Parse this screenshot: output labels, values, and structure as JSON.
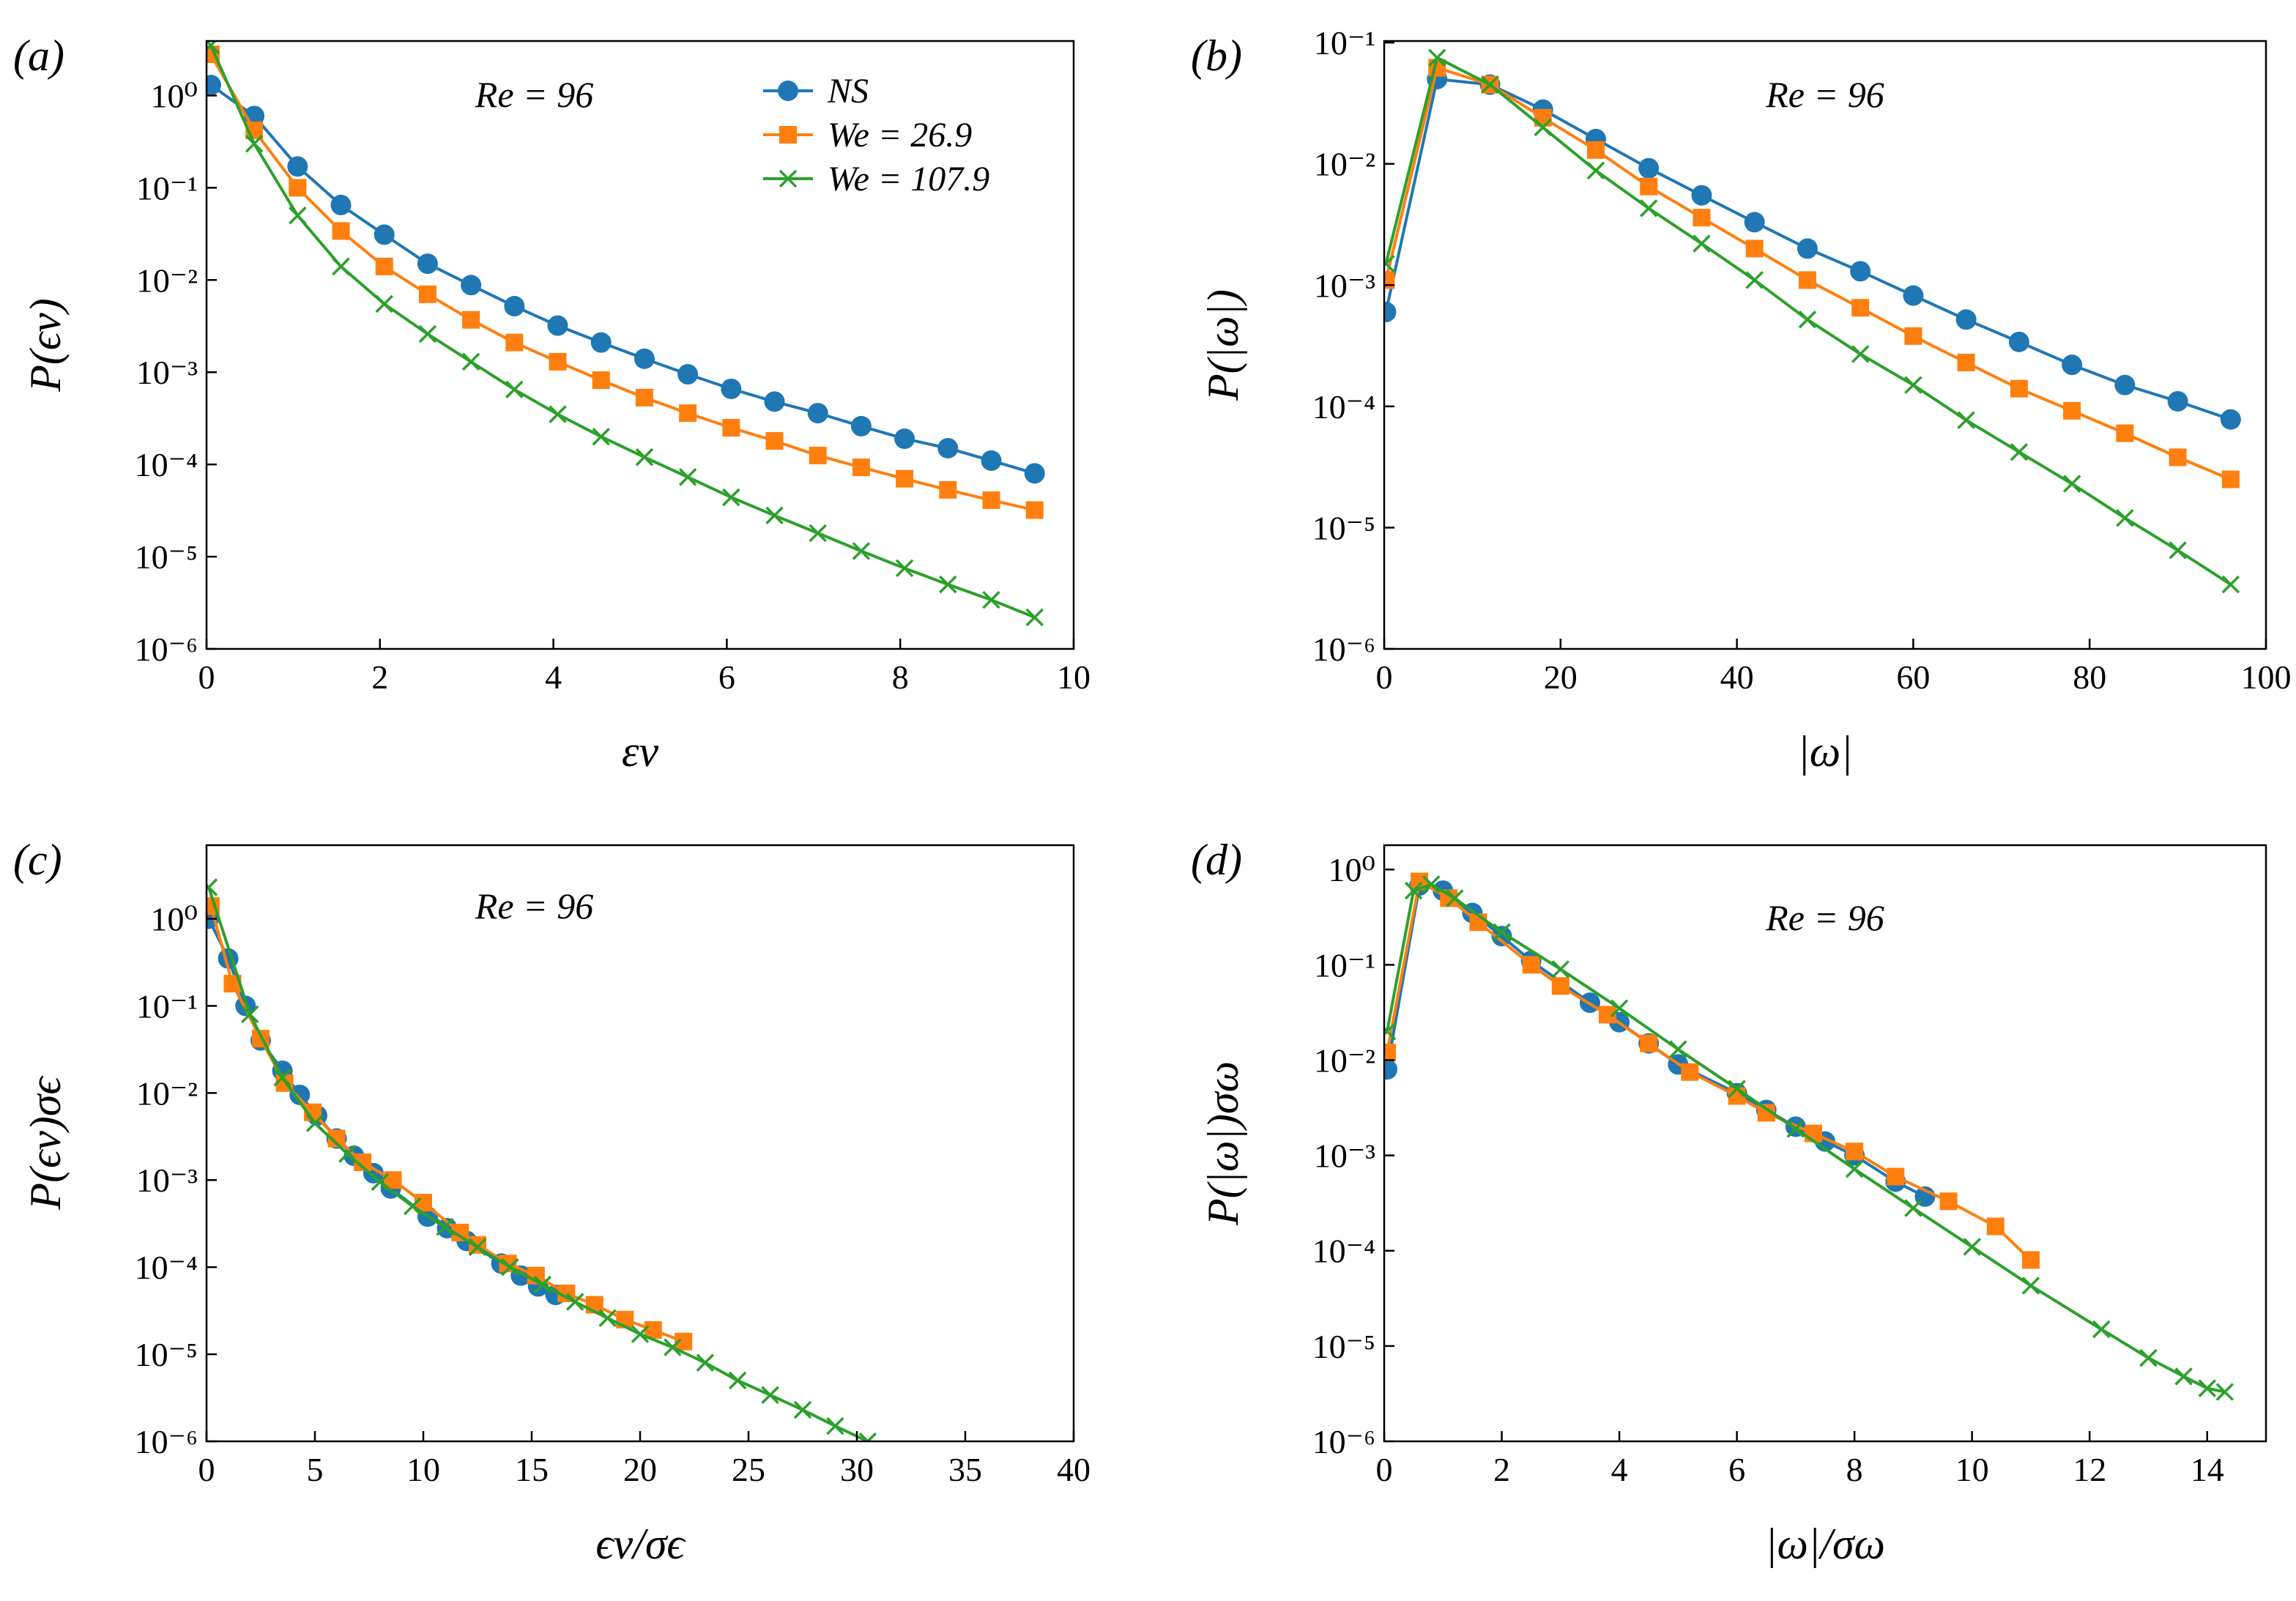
{
  "chart_data": [
    {
      "type": "line",
      "panel_label": "(a)",
      "annotation": "Re = 96",
      "xlabel": "εν",
      "ylabel": "P(ϵν)",
      "yscale": "log",
      "legend": "upper right",
      "xlim": [
        0,
        10
      ],
      "xticks": [
        0,
        2,
        4,
        6,
        8,
        10
      ],
      "ylim": [
        1e-06,
        3.9
      ],
      "yticks": [
        {
          "value": 1,
          "label": "10⁰"
        },
        {
          "value": 0.1,
          "label": "10⁻¹"
        },
        {
          "value": 0.01,
          "label": "10⁻²"
        },
        {
          "value": 0.001,
          "label": "10⁻³"
        },
        {
          "value": 0.0001,
          "label": "10⁻⁴"
        },
        {
          "value": 1e-05,
          "label": "10⁻⁵"
        },
        {
          "value": 1e-06,
          "label": "10⁻⁶"
        }
      ],
      "series": [
        {
          "name": "NS",
          "color": "#1f77b4",
          "marker": "circle",
          "x": [
            0.05,
            0.55,
            1.05,
            1.55,
            2.05,
            2.55,
            3.05,
            3.55,
            4.05,
            4.55,
            5.05,
            5.55,
            6.05,
            6.55,
            7.05,
            7.55,
            8.05,
            8.55,
            9.05,
            9.55
          ],
          "values": [
            1.3,
            0.6,
            0.17,
            0.065,
            0.031,
            0.015,
            0.0088,
            0.0052,
            0.0032,
            0.0021,
            0.0014,
            0.00095,
            0.00066,
            0.00048,
            0.00036,
            0.00026,
            0.00019,
            0.00015,
            0.00011,
            8e-05
          ]
        },
        {
          "name": "We = 26.9",
          "color": "#ff7f0e",
          "marker": "square",
          "x": [
            0.05,
            0.55,
            1.05,
            1.55,
            2.05,
            2.55,
            3.05,
            3.55,
            4.05,
            4.55,
            5.05,
            5.55,
            6.05,
            6.55,
            7.05,
            7.55,
            8.05,
            8.55,
            9.05,
            9.55
          ],
          "values": [
            2.8,
            0.42,
            0.1,
            0.034,
            0.014,
            0.007,
            0.0037,
            0.0021,
            0.0013,
            0.00082,
            0.00053,
            0.00036,
            0.00025,
            0.00018,
            0.000125,
            9.3e-05,
            7e-05,
            5.3e-05,
            4.1e-05,
            3.2e-05
          ]
        },
        {
          "name": "We = 107.9",
          "color": "#2ca02c",
          "marker": "x",
          "x": [
            0.05,
            0.55,
            1.05,
            1.55,
            2.05,
            2.55,
            3.05,
            3.55,
            4.05,
            4.55,
            5.05,
            5.55,
            6.05,
            6.55,
            7.05,
            7.55,
            8.05,
            8.55,
            9.05,
            9.55
          ],
          "values": [
            3.5,
            0.3,
            0.05,
            0.014,
            0.0055,
            0.0026,
            0.0013,
            0.00065,
            0.00035,
            0.0002,
            0.00012,
            7.3e-05,
            4.4e-05,
            2.8e-05,
            1.8e-05,
            1.15e-05,
            7.5e-06,
            5e-06,
            3.4e-06,
            2.2e-06
          ]
        }
      ]
    },
    {
      "type": "line",
      "panel_label": "(b)",
      "annotation": "Re = 96",
      "xlabel": "|ω|",
      "ylabel": "P(|ω|)",
      "yscale": "log",
      "xlim": [
        0,
        100
      ],
      "xticks": [
        0,
        20,
        40,
        60,
        80,
        100
      ],
      "ylim": [
        1e-06,
        0.103
      ],
      "yticks": [
        {
          "value": 0.1,
          "label": "10⁻¹"
        },
        {
          "value": 0.01,
          "label": "10⁻²"
        },
        {
          "value": 0.001,
          "label": "10⁻³"
        },
        {
          "value": 0.0001,
          "label": "10⁻⁴"
        },
        {
          "value": 1e-05,
          "label": "10⁻⁵"
        },
        {
          "value": 1e-06,
          "label": "10⁻⁶"
        }
      ],
      "series": [
        {
          "color": "#1f77b4",
          "marker": "circle",
          "x": [
            0.2,
            6,
            12,
            18,
            24,
            30,
            36,
            42,
            48,
            54,
            60,
            66,
            72,
            78,
            84,
            90,
            96
          ],
          "values": [
            0.0006,
            0.05,
            0.045,
            0.028,
            0.016,
            0.0092,
            0.0055,
            0.0033,
            0.002,
            0.0013,
            0.00082,
            0.00052,
            0.00034,
            0.00022,
            0.00015,
            0.00011,
            7.8e-05
          ]
        },
        {
          "color": "#ff7f0e",
          "marker": "square",
          "x": [
            0.2,
            6,
            12,
            18,
            24,
            30,
            36,
            42,
            48,
            54,
            60,
            66,
            72,
            78,
            84,
            90,
            96
          ],
          "values": [
            0.0011,
            0.062,
            0.045,
            0.024,
            0.013,
            0.0065,
            0.0036,
            0.002,
            0.0011,
            0.00065,
            0.00038,
            0.00023,
            0.00014,
            9.2e-05,
            6e-05,
            3.8e-05,
            2.5e-05
          ]
        },
        {
          "color": "#2ca02c",
          "marker": "x",
          "x": [
            0.2,
            6,
            12,
            18,
            24,
            30,
            36,
            42,
            48,
            54,
            60,
            66,
            72,
            78,
            84,
            90,
            96
          ],
          "values": [
            0.0015,
            0.075,
            0.045,
            0.02,
            0.0088,
            0.0043,
            0.0022,
            0.0011,
            0.00052,
            0.00027,
            0.00015,
            7.7e-05,
            4.2e-05,
            2.3e-05,
            1.2e-05,
            6.5e-06,
            3.4e-06
          ]
        }
      ]
    },
    {
      "type": "line",
      "panel_label": "(c)",
      "annotation": "Re = 96",
      "xlabel": "ϵν/σϵ",
      "ylabel": "P(ϵν)σϵ",
      "yscale": "log",
      "xlim": [
        0,
        40
      ],
      "xticks": [
        0,
        5,
        10,
        15,
        20,
        25,
        30,
        35,
        40
      ],
      "ylim": [
        1e-06,
        7
      ],
      "yticks": [
        {
          "value": 1,
          "label": "10⁰"
        },
        {
          "value": 0.1,
          "label": "10⁻¹"
        },
        {
          "value": 0.01,
          "label": "10⁻²"
        },
        {
          "value": 0.001,
          "label": "10⁻³"
        },
        {
          "value": 0.0001,
          "label": "10⁻⁴"
        },
        {
          "value": 1e-05,
          "label": "10⁻⁵"
        },
        {
          "value": 1e-06,
          "label": "10⁻⁶"
        }
      ],
      "series": [
        {
          "color": "#1f77b4",
          "marker": "circle",
          "x": [
            0.1,
            1,
            1.8,
            2.5,
            3.5,
            4.3,
            5.1,
            6,
            6.8,
            7.7,
            8.5,
            10.2,
            11.1,
            12,
            13.6,
            14.5,
            15.3,
            16.1
          ],
          "values": [
            1,
            0.35,
            0.1,
            0.04,
            0.018,
            0.0095,
            0.0055,
            0.003,
            0.0019,
            0.0012,
            0.0008,
            0.00038,
            0.00028,
            0.0002,
            0.00011,
            8e-05,
            6e-05,
            4.8e-05
          ]
        },
        {
          "color": "#ff7f0e",
          "marker": "square",
          "x": [
            0.2,
            1.2,
            2.5,
            3.6,
            4.9,
            6,
            7.2,
            8.6,
            10,
            11.7,
            12.5,
            13.9,
            15.2,
            16.6,
            17.9,
            19.3,
            20.6,
            22
          ],
          "values": [
            1.4,
            0.18,
            0.042,
            0.013,
            0.006,
            0.003,
            0.0016,
            0.001,
            0.00055,
            0.00025,
            0.00018,
            0.00011,
            8e-05,
            5e-05,
            3.7e-05,
            2.5e-05,
            1.9e-05,
            1.4e-05
          ]
        },
        {
          "color": "#2ca02c",
          "marker": "x",
          "x": [
            0.1,
            2,
            3.5,
            5,
            6.5,
            8,
            9.5,
            11,
            12.5,
            14,
            15.5,
            17,
            18.5,
            20,
            21.5,
            23,
            24.5,
            26,
            27.5,
            29,
            30.5
          ],
          "values": [
            2.3,
            0.08,
            0.015,
            0.0045,
            0.002,
            0.00095,
            0.0005,
            0.00029,
            0.00017,
            0.0001,
            6.3e-05,
            4e-05,
            2.6e-05,
            1.7e-05,
            1.2e-05,
            8e-06,
            5e-06,
            3.4e-06,
            2.3e-06,
            1.5e-06,
            1e-06
          ]
        }
      ]
    },
    {
      "type": "line",
      "panel_label": "(d)",
      "annotation": "Re = 96",
      "xlabel": "|ω|/σω",
      "ylabel": "P(|ω|)σω",
      "yscale": "log",
      "xlim": [
        0,
        15
      ],
      "xticks": [
        0,
        2,
        4,
        6,
        8,
        10,
        12,
        14
      ],
      "ylim": [
        1e-06,
        1.8
      ],
      "yticks": [
        {
          "value": 1,
          "label": "10⁰"
        },
        {
          "value": 0.1,
          "label": "10⁻¹"
        },
        {
          "value": 0.01,
          "label": "10⁻²"
        },
        {
          "value": 0.001,
          "label": "10⁻³"
        },
        {
          "value": 0.0001,
          "label": "10⁻⁴"
        },
        {
          "value": 1e-05,
          "label": "10⁻⁵"
        },
        {
          "value": 1e-06,
          "label": "10⁻⁶"
        }
      ],
      "series": [
        {
          "color": "#1f77b4",
          "marker": "circle",
          "x": [
            0.05,
            0.6,
            1,
            1.5,
            2,
            2.5,
            3.5,
            4,
            4.5,
            5,
            6,
            6.5,
            7,
            7.5,
            8,
            8.7,
            9.2
          ],
          "values": [
            0.008,
            0.68,
            0.6,
            0.35,
            0.2,
            0.11,
            0.04,
            0.025,
            0.015,
            0.009,
            0.0045,
            0.003,
            0.002,
            0.0014,
            0.001,
            0.00053,
            0.00037
          ]
        },
        {
          "color": "#ff7f0e",
          "marker": "square",
          "x": [
            0.05,
            0.6,
            1.1,
            1.6,
            2.5,
            3,
            3.8,
            4.5,
            5.2,
            6,
            6.5,
            7.3,
            8,
            8.7,
            9.6,
            10.4,
            11
          ],
          "values": [
            0.012,
            0.75,
            0.5,
            0.28,
            0.1,
            0.06,
            0.03,
            0.015,
            0.0075,
            0.0042,
            0.0028,
            0.0017,
            0.0011,
            0.0006,
            0.00033,
            0.00018,
            8e-05
          ]
        },
        {
          "color": "#2ca02c",
          "marker": "x",
          "x": [
            0.05,
            0.5,
            0.8,
            1.2,
            2,
            3,
            4,
            5,
            6,
            7,
            8,
            9,
            10,
            11,
            12.2,
            13,
            13.6,
            14,
            14.3
          ],
          "values": [
            0.02,
            0.6,
            0.7,
            0.5,
            0.22,
            0.09,
            0.035,
            0.013,
            0.005,
            0.0019,
            0.00072,
            0.00028,
            0.00011,
            4.3e-05,
            1.5e-05,
            7.5e-06,
            4.8e-06,
            3.6e-06,
            3.3e-06
          ]
        }
      ]
    }
  ]
}
